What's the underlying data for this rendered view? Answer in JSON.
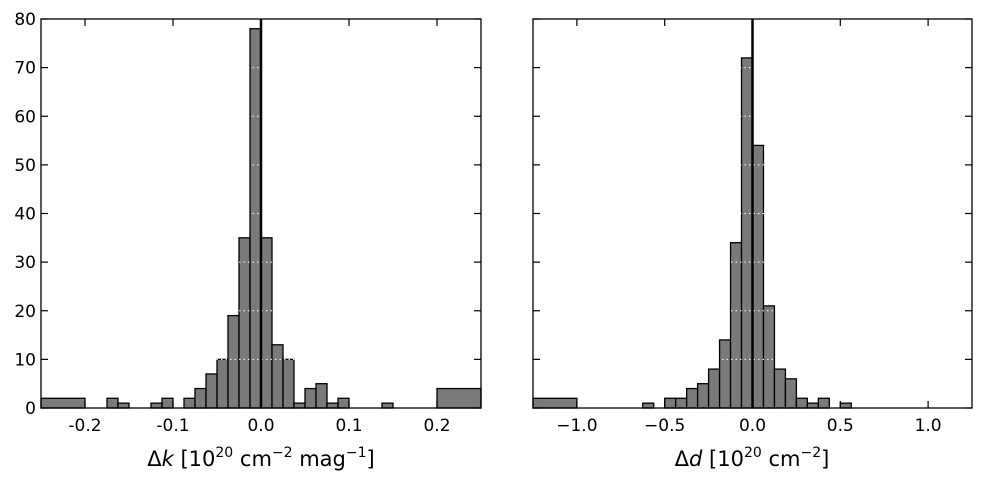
{
  "chart_data": [
    {
      "type": "bar",
      "xlabel": {
        "symbol": "Δ",
        "var": "k",
        "pre": " [10",
        "exp1": "20",
        "mid1": " cm",
        "exp2": "−2",
        "mid2": " mag",
        "exp3": "−1",
        "post": "]"
      },
      "xlim": [
        -0.25,
        0.25
      ],
      "ylim": [
        0,
        80
      ],
      "xticks": [
        -0.2,
        -0.1,
        0.0,
        0.1,
        0.2
      ],
      "xtick_labels": [
        "-0.2",
        "-0.1",
        "0.0",
        "0.1",
        "0.2"
      ],
      "yticks": [
        0,
        10,
        20,
        30,
        40,
        50,
        60,
        70,
        80
      ],
      "ytick_labels": [
        "0",
        "10",
        "20",
        "30",
        "40",
        "50",
        "60",
        "70",
        "80"
      ],
      "vline_x": 0.0,
      "bins": [
        {
          "x0": -0.25,
          "x1": -0.2,
          "value": 2
        },
        {
          "x0": -0.175,
          "x1": -0.1625,
          "value": 2
        },
        {
          "x0": -0.1625,
          "x1": -0.15,
          "value": 1
        },
        {
          "x0": -0.125,
          "x1": -0.1125,
          "value": 1
        },
        {
          "x0": -0.1125,
          "x1": -0.1,
          "value": 2
        },
        {
          "x0": -0.0875,
          "x1": -0.075,
          "value": 2
        },
        {
          "x0": -0.075,
          "x1": -0.0625,
          "value": 4
        },
        {
          "x0": -0.0625,
          "x1": -0.05,
          "value": 7
        },
        {
          "x0": -0.05,
          "x1": -0.0375,
          "value": 10
        },
        {
          "x0": -0.0375,
          "x1": -0.025,
          "value": 19
        },
        {
          "x0": -0.025,
          "x1": -0.0125,
          "value": 35
        },
        {
          "x0": -0.0125,
          "x1": 0.0,
          "value": 78
        },
        {
          "x0": 0.0,
          "x1": 0.0125,
          "value": 35
        },
        {
          "x0": 0.0125,
          "x1": 0.025,
          "value": 13
        },
        {
          "x0": 0.025,
          "x1": 0.0375,
          "value": 10
        },
        {
          "x0": 0.0375,
          "x1": 0.05,
          "value": 1
        },
        {
          "x0": 0.05,
          "x1": 0.0625,
          "value": 4
        },
        {
          "x0": 0.0625,
          "x1": 0.075,
          "value": 5
        },
        {
          "x0": 0.075,
          "x1": 0.0875,
          "value": 1
        },
        {
          "x0": 0.0875,
          "x1": 0.1,
          "value": 2
        },
        {
          "x0": 0.1375,
          "x1": 0.15,
          "value": 1
        },
        {
          "x0": 0.2,
          "x1": 0.25,
          "value": 4
        }
      ]
    },
    {
      "type": "bar",
      "xlabel": {
        "symbol": "Δ",
        "var": "d",
        "pre": " [10",
        "exp1": "20",
        "mid1": " cm",
        "exp2": "−2",
        "post": "]"
      },
      "xlim": [
        -1.25,
        1.25
      ],
      "ylim": [
        0,
        80
      ],
      "xticks": [
        -1.0,
        -0.5,
        0.0,
        0.5,
        1.0
      ],
      "xtick_labels": [
        "−1.0",
        "−0.5",
        "0.0",
        "0.5",
        "1.0"
      ],
      "yticks": [
        0,
        10,
        20,
        30,
        40,
        50,
        60,
        70,
        80
      ],
      "ytick_labels": [],
      "vline_x": 0.0,
      "bins": [
        {
          "x0": -1.25,
          "x1": -1.0,
          "value": 2
        },
        {
          "x0": -0.625,
          "x1": -0.5625,
          "value": 1
        },
        {
          "x0": -0.5,
          "x1": -0.4375,
          "value": 2
        },
        {
          "x0": -0.4375,
          "x1": -0.375,
          "value": 2
        },
        {
          "x0": -0.375,
          "x1": -0.3125,
          "value": 4
        },
        {
          "x0": -0.3125,
          "x1": -0.25,
          "value": 5
        },
        {
          "x0": -0.25,
          "x1": -0.1875,
          "value": 8
        },
        {
          "x0": -0.1875,
          "x1": -0.125,
          "value": 14
        },
        {
          "x0": -0.125,
          "x1": -0.0625,
          "value": 34
        },
        {
          "x0": -0.0625,
          "x1": 0.0,
          "value": 72
        },
        {
          "x0": 0.0,
          "x1": 0.0625,
          "value": 54
        },
        {
          "x0": 0.0625,
          "x1": 0.125,
          "value": 21
        },
        {
          "x0": 0.125,
          "x1": 0.1875,
          "value": 8
        },
        {
          "x0": 0.1875,
          "x1": 0.25,
          "value": 6
        },
        {
          "x0": 0.25,
          "x1": 0.3125,
          "value": 2
        },
        {
          "x0": 0.3125,
          "x1": 0.375,
          "value": 1
        },
        {
          "x0": 0.375,
          "x1": 0.4375,
          "value": 2
        },
        {
          "x0": 0.5,
          "x1": 0.5625,
          "value": 1
        }
      ]
    }
  ],
  "colors": {
    "bar_fill": "#7a7a7a",
    "bar_edge": "#000000",
    "grid_dots": "#ffffff",
    "axis": "#000000",
    "background": "#ffffff"
  }
}
